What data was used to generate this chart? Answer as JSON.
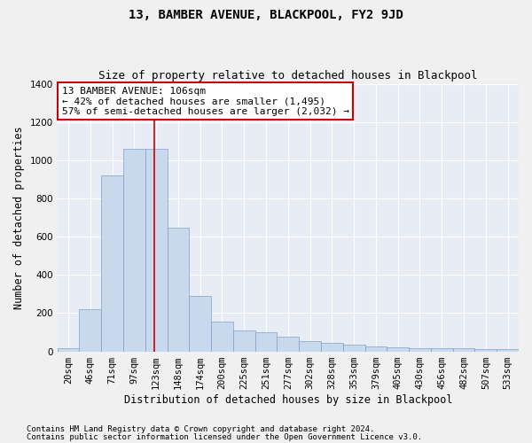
{
  "title": "13, BAMBER AVENUE, BLACKPOOL, FY2 9JD",
  "subtitle": "Size of property relative to detached houses in Blackpool",
  "xlabel": "Distribution of detached houses by size in Blackpool",
  "ylabel": "Number of detached properties",
  "bar_color": "#c8d9ee",
  "bar_edge_color": "#7fa0c8",
  "background_color": "#e8edf5",
  "grid_color": "#ffffff",
  "categories": [
    "20sqm",
    "46sqm",
    "71sqm",
    "97sqm",
    "123sqm",
    "148sqm",
    "174sqm",
    "200sqm",
    "225sqm",
    "251sqm",
    "277sqm",
    "302sqm",
    "328sqm",
    "353sqm",
    "379sqm",
    "405sqm",
    "430sqm",
    "456sqm",
    "482sqm",
    "507sqm",
    "533sqm"
  ],
  "values": [
    18,
    220,
    920,
    1060,
    1060,
    645,
    290,
    155,
    110,
    100,
    75,
    55,
    45,
    35,
    25,
    20,
    18,
    16,
    15,
    14,
    13
  ],
  "property_line_x": 3.92,
  "annotation_text": "13 BAMBER AVENUE: 106sqm\n← 42% of detached houses are smaller (1,495)\n57% of semi-detached houses are larger (2,032) →",
  "annotation_box_color": "#ffffff",
  "annotation_border_color": "#cc0000",
  "vertical_line_color": "#cc0000",
  "ylim": [
    0,
    1400
  ],
  "yticks": [
    0,
    200,
    400,
    600,
    800,
    1000,
    1200,
    1400
  ],
  "footer1": "Contains HM Land Registry data © Crown copyright and database right 2024.",
  "footer2": "Contains public sector information licensed under the Open Government Licence v3.0.",
  "title_fontsize": 10,
  "subtitle_fontsize": 9,
  "xlabel_fontsize": 8.5,
  "ylabel_fontsize": 8.5,
  "tick_fontsize": 7.5,
  "footer_fontsize": 6.5,
  "annot_fontsize": 8
}
